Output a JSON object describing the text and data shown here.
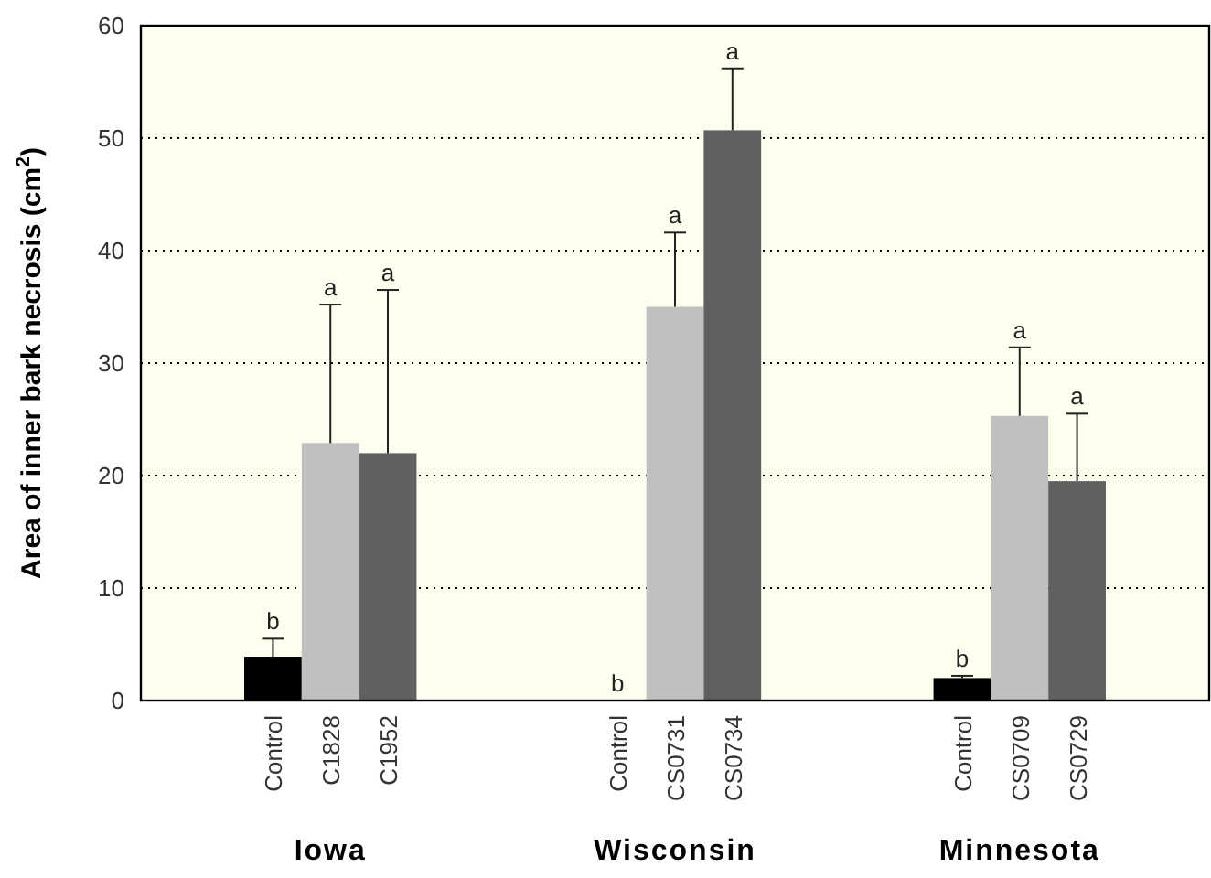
{
  "chart_data": {
    "type": "bar",
    "ylabel": "Area of inner bark necrosis (cm$^{2}$)",
    "categories": [
      "Control",
      "C1828",
      "C1952",
      null,
      null,
      null,
      "Control",
      "CS0731",
      "CS0734",
      null,
      null,
      null,
      "Control",
      "CS0709",
      "CS0729"
    ],
    "values": [
      3.9,
      22.9,
      22.0,
      null,
      null,
      null,
      0,
      35.0,
      50.7,
      null,
      null,
      null,
      2.0,
      25.3,
      19.5
    ],
    "errors": [
      [
        3.9,
        5.5
      ],
      [
        22.9,
        35.2
      ],
      [
        22.0,
        36.5
      ],
      null,
      null,
      null,
      null,
      [
        35.0,
        41.6
      ],
      [
        50.7,
        56.2
      ],
      null,
      null,
      null,
      [
        2.0,
        2.2
      ],
      [
        25.3,
        31.4
      ],
      [
        19.5,
        25.5
      ]
    ],
    "colors": [
      "#000000",
      "#c0c0c0",
      "#606060",
      null,
      null,
      null,
      "#000000",
      "#c0c0c0",
      "#606060",
      null,
      null,
      null,
      "#000000",
      "#c0c0c0",
      "#606060"
    ],
    "value_labels": [
      "b",
      null,
      null,
      null,
      null,
      null,
      "b",
      null,
      null,
      null,
      null,
      null,
      "b",
      null,
      null
    ],
    "annotations": [
      "Iowa",
      "Wisconsin",
      "Minnesota",
      {
        "text": "a",
        "x": "C1828",
        "y": 35.2
      },
      {
        "text": "a",
        "x": "C1952",
        "y": 36.5
      },
      {
        "text": "a",
        "x": "CS0731",
        "y": 41.6
      },
      {
        "text": "a",
        "x": "CS0734",
        "y": 56.2
      },
      {
        "text": "a",
        "x": "CS0709",
        "y": 31.4
      },
      {
        "text": "a",
        "x": "CS0729",
        "y": 25.5
      }
    ],
    "ylim": [
      0,
      60
    ],
    "yticks": [
      0,
      10,
      20,
      30,
      40,
      50,
      60
    ],
    "grid": "y"
  }
}
